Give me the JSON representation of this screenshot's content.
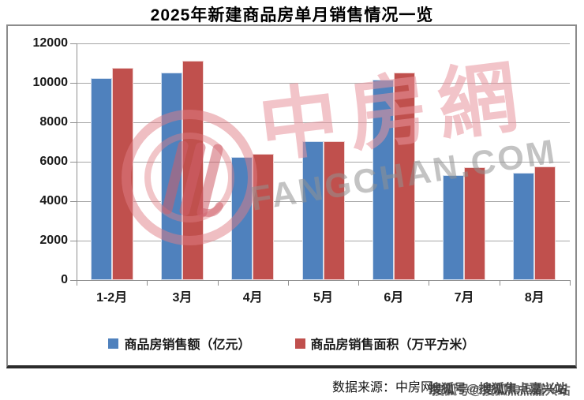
{
  "page": {
    "title": "2025年新建商品房单月销售情况一览",
    "footer": {
      "source_label": "数据来源：中房网",
      "overlay_watermark": "搜狐号@搜狐焦点嘉兴站"
    }
  },
  "watermark": {
    "logo_text": "中房網",
    "logo_domain": "FANGCHAN.COM",
    "pink_color": "#E7949C",
    "gray_color": "#919191"
  },
  "chart_data": {
    "type": "bar",
    "title": "2025年新建商品房单月销售情况一览",
    "categories": [
      "1-2月",
      "3月",
      "4月",
      "5月",
      "6月",
      "7月",
      "8月"
    ],
    "series": [
      {
        "name": "商品房销售额（亿元）",
        "color": "#4F81BD",
        "values": [
          10259,
          10539,
          6237,
          7056,
          10150,
          5325,
          5424
        ]
      },
      {
        "name": "商品房销售面积（万平方米）",
        "color": "#C0504D",
        "values": [
          10746,
          11126,
          6390,
          7053,
          10536,
          5709,
          5744
        ]
      }
    ],
    "ylim": [
      0,
      12000
    ],
    "yticks": [
      0,
      2000,
      4000,
      6000,
      8000,
      10000,
      12000
    ],
    "grid": true,
    "legend_position": "bottom",
    "xlabel": "",
    "ylabel": ""
  }
}
